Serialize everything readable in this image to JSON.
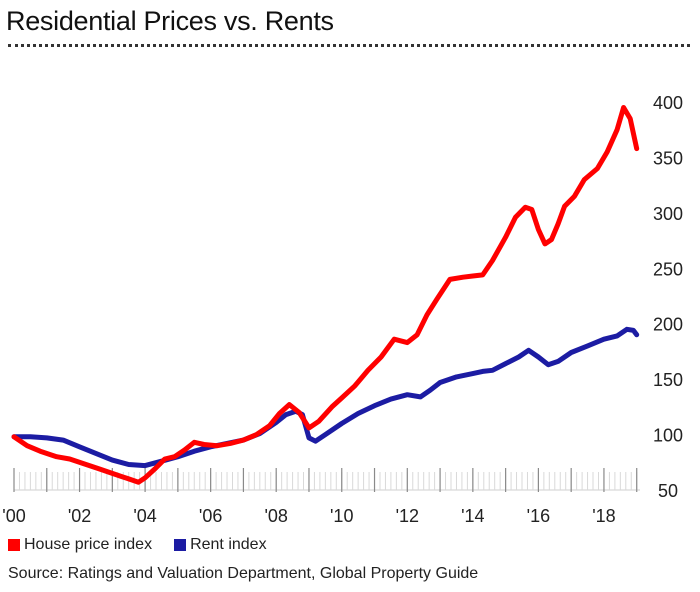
{
  "chart_data": {
    "type": "line",
    "title": "Residential Prices vs. Rents",
    "xlabel": "",
    "ylabel": "",
    "x_tick_labels": [
      "'00",
      "'02",
      "'04",
      "'06",
      "'08",
      "'10",
      "'12",
      "'14",
      "'16",
      "'18"
    ],
    "x_tick_values": [
      2000,
      2002,
      2004,
      2006,
      2008,
      2010,
      2012,
      2014,
      2016,
      2018
    ],
    "xlim": [
      2000,
      2019.1
    ],
    "ylim": [
      50,
      400
    ],
    "y_ticks": [
      50,
      100,
      150,
      200,
      250,
      300,
      350,
      400
    ],
    "y_axis_side": "right",
    "series": [
      {
        "name": "House price index",
        "color": "#ff0000",
        "x": [
          2000.0,
          2000.4,
          2000.8,
          2001.3,
          2001.7,
          2002.2,
          2002.6,
          2003.0,
          2003.3,
          2003.6,
          2003.8,
          2004.0,
          2004.3,
          2004.6,
          2004.9,
          2005.2,
          2005.5,
          2005.8,
          2006.2,
          2006.6,
          2007.0,
          2007.4,
          2007.8,
          2008.1,
          2008.4,
          2008.7,
          2009.0,
          2009.3,
          2009.7,
          2010.0,
          2010.4,
          2010.8,
          2011.2,
          2011.6,
          2012.0,
          2012.3,
          2012.6,
          2012.9,
          2013.3,
          2013.7,
          2014.0,
          2014.3,
          2014.6,
          2015.0,
          2015.3,
          2015.6,
          2015.8,
          2016.0,
          2016.2,
          2016.4,
          2016.6,
          2016.8,
          2017.1,
          2017.4,
          2017.8,
          2018.1,
          2018.4,
          2018.6,
          2018.8,
          2019.0
        ],
        "values": [
          98,
          90,
          85,
          80,
          78,
          73,
          69,
          65,
          62,
          59,
          57,
          61,
          69,
          78,
          80,
          86,
          93,
          91,
          90,
          92,
          95,
          100,
          108,
          119,
          127,
          120,
          106,
          112,
          125,
          133,
          144,
          158,
          170,
          186,
          183,
          190,
          208,
          222,
          240,
          242,
          243,
          244,
          257,
          278,
          296,
          305,
          303,
          285,
          272,
          276,
          290,
          306,
          315,
          330,
          340,
          355,
          375,
          395,
          385,
          358
        ]
      },
      {
        "name": "Rent index",
        "color": "#1c1ca3",
        "x": [
          2000.0,
          2000.5,
          2001.0,
          2001.5,
          2002.0,
          2002.5,
          2003.0,
          2003.5,
          2004.0,
          2004.5,
          2005.0,
          2005.5,
          2006.0,
          2006.5,
          2007.0,
          2007.5,
          2008.0,
          2008.3,
          2008.6,
          2008.8,
          2009.0,
          2009.2,
          2009.5,
          2010.0,
          2010.5,
          2011.0,
          2011.5,
          2012.0,
          2012.4,
          2012.7,
          2013.0,
          2013.5,
          2014.0,
          2014.3,
          2014.6,
          2015.0,
          2015.4,
          2015.7,
          2016.0,
          2016.3,
          2016.6,
          2017.0,
          2017.5,
          2018.0,
          2018.4,
          2018.7,
          2018.9,
          2019.0
        ],
        "values": [
          98,
          98,
          97,
          95,
          89,
          83,
          77,
          73,
          72,
          76,
          80,
          85,
          89,
          92,
          95,
          101,
          111,
          118,
          121,
          118,
          97,
          94,
          100,
          110,
          119,
          126,
          132,
          136,
          134,
          140,
          147,
          152,
          155,
          157,
          158,
          164,
          170,
          176,
          170,
          163,
          166,
          174,
          180,
          186,
          189,
          195,
          194,
          190
        ]
      }
    ],
    "legend": [
      "House price index",
      "Rent index"
    ],
    "legend_position": "bottom-left",
    "source": "Source: Ratings and Valuation Department, Global Property Guide"
  }
}
